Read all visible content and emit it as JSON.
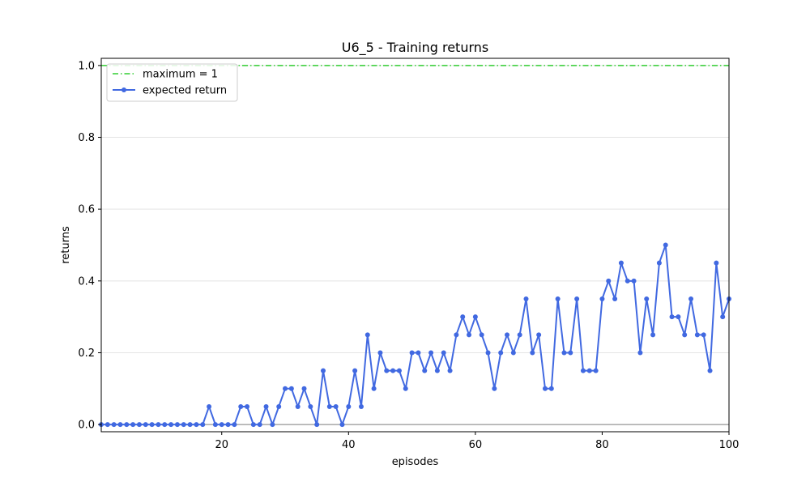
{
  "chart_data": {
    "type": "line",
    "title": "U6_5 - Training returns",
    "xlabel": "episodes",
    "ylabel": "returns",
    "xlim": [
      1,
      100
    ],
    "ylim": [
      -0.02,
      1.02
    ],
    "x_ticks": [
      20,
      40,
      60,
      80,
      100
    ],
    "y_ticks": [
      0.0,
      0.2,
      0.4,
      0.6,
      0.8,
      1.0
    ],
    "x_tick_labels": [
      "20",
      "40",
      "60",
      "80",
      "100"
    ],
    "y_tick_labels": [
      "0.0",
      "0.2",
      "0.4",
      "0.6",
      "0.8",
      "1.0"
    ],
    "grid": "horizontal",
    "legend_position": "top-left",
    "reference_lines": [
      {
        "name": "maximum = 1",
        "y": 1.0,
        "color": "#32cd32",
        "style": "dash-dot"
      },
      {
        "name": "",
        "y": 0.0,
        "color": "#808080",
        "style": "solid"
      }
    ],
    "series": [
      {
        "name": "expected return",
        "color": "#4169e1",
        "marker": "circle",
        "x": [
          1,
          2,
          3,
          4,
          5,
          6,
          7,
          8,
          9,
          10,
          11,
          12,
          13,
          14,
          15,
          16,
          17,
          18,
          19,
          20,
          21,
          22,
          23,
          24,
          25,
          26,
          27,
          28,
          29,
          30,
          31,
          32,
          33,
          34,
          35,
          36,
          37,
          38,
          39,
          40,
          41,
          42,
          43,
          44,
          45,
          46,
          47,
          48,
          49,
          50,
          51,
          52,
          53,
          54,
          55,
          56,
          57,
          58,
          59,
          60,
          61,
          62,
          63,
          64,
          65,
          66,
          67,
          68,
          69,
          70,
          71,
          72,
          73,
          74,
          75,
          76,
          77,
          78,
          79,
          80,
          81,
          82,
          83,
          84,
          85,
          86,
          87,
          88,
          89,
          90,
          91,
          92,
          93,
          94,
          95,
          96,
          97,
          98,
          99,
          100
        ],
        "values": [
          0,
          0,
          0,
          0,
          0,
          0,
          0,
          0,
          0,
          0,
          0,
          0,
          0,
          0,
          0,
          0,
          0,
          0.05,
          0,
          0,
          0,
          0,
          0.05,
          0.05,
          0,
          0,
          0.05,
          0,
          0.05,
          0.1,
          0.1,
          0.05,
          0.1,
          0.05,
          0,
          0.15,
          0.05,
          0.05,
          0,
          0.05,
          0.15,
          0.05,
          0.25,
          0.1,
          0.2,
          0.15,
          0.15,
          0.15,
          0.1,
          0.2,
          0.2,
          0.15,
          0.2,
          0.15,
          0.2,
          0.15,
          0.25,
          0.3,
          0.25,
          0.3,
          0.25,
          0.2,
          0.1,
          0.2,
          0.25,
          0.2,
          0.25,
          0.35,
          0.2,
          0.25,
          0.1,
          0.1,
          0.35,
          0.2,
          0.2,
          0.35,
          0.15,
          0.15,
          0.15,
          0.35,
          0.4,
          0.35,
          0.45,
          0.4,
          0.4,
          0.2,
          0.35,
          0.25,
          0.45,
          0.5,
          0.3,
          0.3,
          0.25,
          0.35,
          0.25,
          0.25,
          0.15,
          0.45,
          0.3,
          0.35
        ]
      }
    ]
  }
}
